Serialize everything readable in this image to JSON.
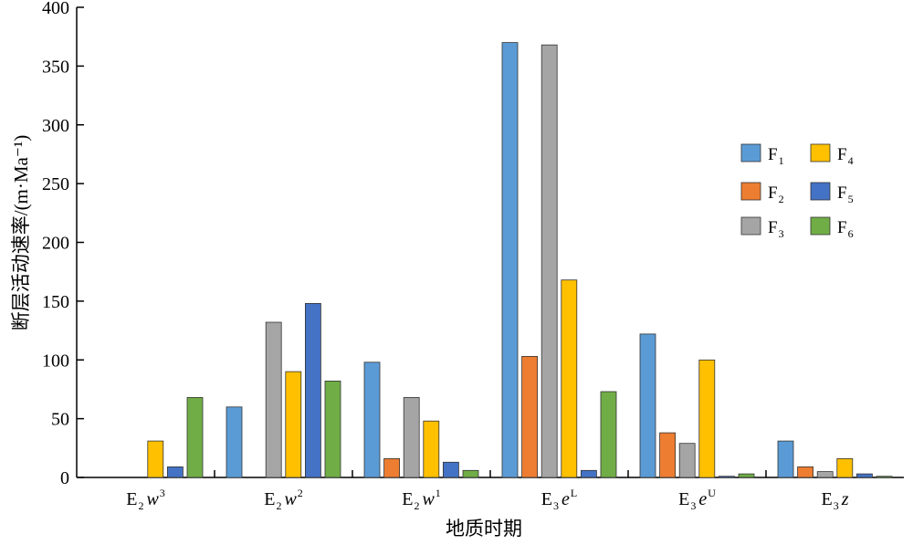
{
  "chart_data": {
    "type": "bar",
    "xlabel": "地质时期",
    "ylabel": "断层活动速率/(m·Ma⁻¹)",
    "ylim": [
      0,
      400
    ],
    "yticks": [
      0,
      50,
      100,
      150,
      200,
      250,
      300,
      350,
      400
    ],
    "categories": [
      {
        "id": "E2w3",
        "base": "E",
        "sub": "2",
        "mid": "w",
        "sup": "3",
        "italic": true
      },
      {
        "id": "E2w2",
        "base": "E",
        "sub": "2",
        "mid": "w",
        "sup": "2",
        "italic": true
      },
      {
        "id": "E2w1",
        "base": "E",
        "sub": "2",
        "mid": "w",
        "sup": "1",
        "italic": true
      },
      {
        "id": "E3eL",
        "base": "E",
        "sub": "3",
        "mid": "e",
        "sup": "L",
        "italic": true
      },
      {
        "id": "E3eU",
        "base": "E",
        "sub": "3",
        "mid": "e",
        "sup": "U",
        "italic": true
      },
      {
        "id": "E3z",
        "base": "E",
        "sub": "3",
        "mid": "z",
        "sup": "",
        "italic": true
      }
    ],
    "series": [
      {
        "name": "F1",
        "label_base": "F",
        "label_sub": "1",
        "color": "#5b9bd5",
        "values": [
          0,
          60,
          98,
          370,
          122,
          31
        ]
      },
      {
        "name": "F2",
        "label_base": "F",
        "label_sub": "2",
        "color": "#ed7d31",
        "values": [
          0,
          0,
          16,
          103,
          38,
          9
        ]
      },
      {
        "name": "F3",
        "label_base": "F",
        "label_sub": "3",
        "color": "#a5a5a5",
        "values": [
          0,
          132,
          68,
          368,
          29,
          5
        ]
      },
      {
        "name": "F4",
        "label_base": "F",
        "label_sub": "4",
        "color": "#ffc000",
        "values": [
          31,
          90,
          48,
          168,
          100,
          16
        ]
      },
      {
        "name": "F5",
        "label_base": "F",
        "label_sub": "5",
        "color": "#4472c4",
        "values": [
          9,
          148,
          13,
          6,
          1,
          3
        ]
      },
      {
        "name": "F6",
        "label_base": "F",
        "label_sub": "6",
        "color": "#70ad47",
        "values": [
          68,
          82,
          6,
          73,
          3,
          1
        ]
      }
    ],
    "legend": {
      "position": "right",
      "columns": 2
    },
    "grid": false
  }
}
